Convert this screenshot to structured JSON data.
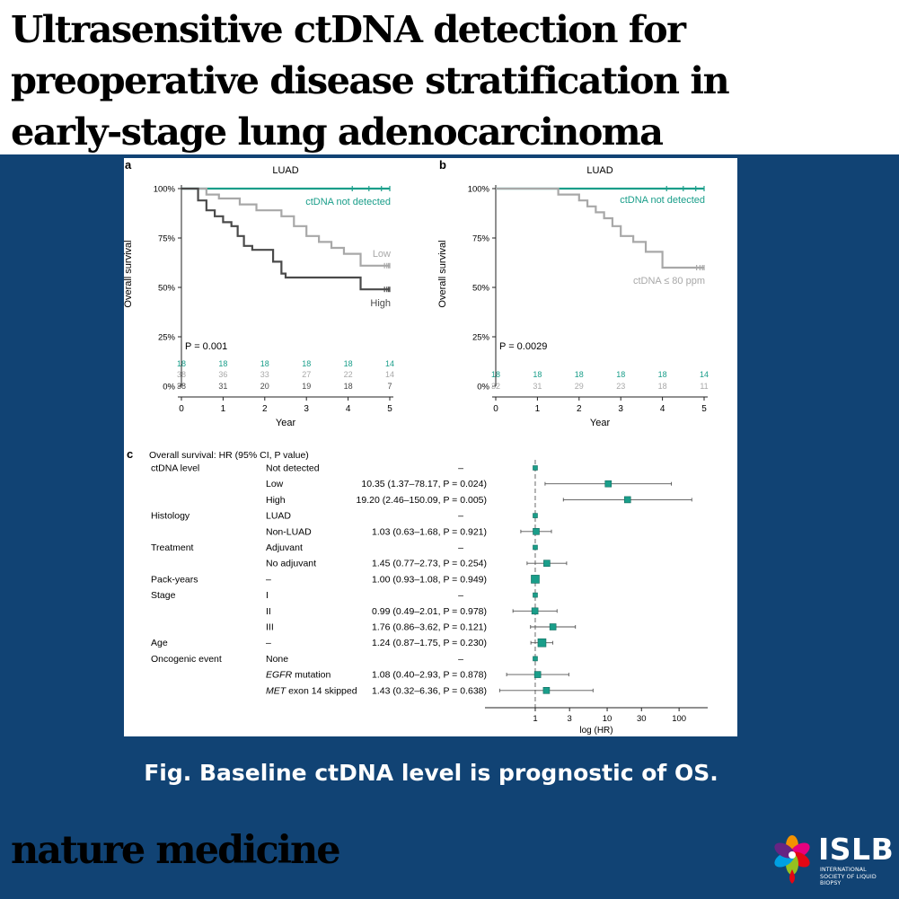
{
  "header": {
    "title_lines": [
      "Ultrasensitive ctDNA detection for",
      "preoperative disease stratification in",
      "early-stage lung adenocarcinoma"
    ]
  },
  "caption": "Fig.  Baseline ctDNA level is prognostic of OS.",
  "journal_brand": "nature medicine",
  "logo": {
    "word": "ISLB",
    "subtitle": "INTERNATIONAL SOCIETY OF LIQUID BIOPSY"
  },
  "colors": {
    "background": "#114374",
    "teal": "#1a9e8a",
    "low_gray": "#a8a8a8",
    "high_dark": "#4a4a4a"
  },
  "chart_data": [
    {
      "type": "line",
      "panel_label": "a",
      "title": "LUAD",
      "xlabel": "Year",
      "ylabel": "Overall survival",
      "xlim": [
        0,
        5
      ],
      "ylim": [
        0,
        100
      ],
      "x_ticks": [
        "0",
        "1",
        "2",
        "3",
        "4",
        "5"
      ],
      "y_ticks": [
        "0%",
        "25%",
        "50%",
        "75%",
        "100%"
      ],
      "pvalue": "P = 0.001",
      "series": [
        {
          "name": "ctDNA not detected",
          "color": "#1a9e8a",
          "x": [
            0,
            5
          ],
          "y": [
            100,
            100
          ],
          "at_risk": [
            "18",
            "18",
            "18",
            "18",
            "18",
            "14"
          ]
        },
        {
          "name": "Low",
          "color": "#a8a8a8",
          "x": [
            0,
            0.6,
            0.9,
            1.4,
            1.8,
            2.4,
            2.7,
            3.0,
            3.3,
            3.6,
            3.9,
            4.3,
            5
          ],
          "y": [
            100,
            97,
            95,
            92,
            89,
            86,
            81,
            76,
            73,
            70,
            67,
            61,
            61
          ],
          "at_risk": [
            "38",
            "36",
            "33",
            "27",
            "22",
            "14"
          ]
        },
        {
          "name": "High",
          "color": "#4a4a4a",
          "x": [
            0,
            0.4,
            0.6,
            0.8,
            1.0,
            1.2,
            1.35,
            1.5,
            1.7,
            2.2,
            2.4,
            2.5,
            4.3,
            5
          ],
          "y": [
            100,
            94,
            89,
            86,
            83,
            81,
            76,
            71,
            69,
            63,
            57,
            55,
            49,
            49
          ],
          "at_risk": [
            "38",
            "31",
            "20",
            "19",
            "18",
            "7"
          ]
        }
      ]
    },
    {
      "type": "line",
      "panel_label": "b",
      "title": "LUAD",
      "xlabel": "Year",
      "ylabel": "Overall survival",
      "xlim": [
        0,
        5
      ],
      "ylim": [
        0,
        100
      ],
      "x_ticks": [
        "0",
        "1",
        "2",
        "3",
        "4",
        "5"
      ],
      "y_ticks": [
        "0%",
        "25%",
        "50%",
        "75%",
        "100%"
      ],
      "pvalue": "P = 0.0029",
      "series": [
        {
          "name": "ctDNA not detected",
          "color": "#1a9e8a",
          "x": [
            0,
            5
          ],
          "y": [
            100,
            100
          ],
          "at_risk": [
            "18",
            "18",
            "18",
            "18",
            "18",
            "14"
          ]
        },
        {
          "name": "ctDNA ≤ 80 ppm",
          "color": "#a8a8a8",
          "x": [
            0,
            1.5,
            2.0,
            2.2,
            2.4,
            2.6,
            2.8,
            3.0,
            3.3,
            3.6,
            4.0,
            5
          ],
          "y": [
            100,
            97,
            94,
            91,
            88,
            85,
            81,
            76,
            73,
            68,
            60,
            60
          ],
          "at_risk": [
            "32",
            "31",
            "29",
            "23",
            "18",
            "11"
          ]
        }
      ]
    },
    {
      "type": "scatter",
      "subtype": "forest",
      "panel_label": "c",
      "title": "Overall survival: HR (95% CI, P value)",
      "xlabel": "log (HR)",
      "x_scale": "log",
      "x_ticks": [
        "1",
        "3",
        "10",
        "30",
        "100"
      ],
      "rows": [
        {
          "variable": "ctDNA level",
          "level": "Not detected",
          "hr_text": "–",
          "hr": 1,
          "lo": null,
          "hi": null,
          "ref": true
        },
        {
          "variable": "",
          "level": "Low",
          "hr_text": "10.35 (1.37–78.17, P = 0.024)",
          "hr": 10.35,
          "lo": 1.37,
          "hi": 78.17
        },
        {
          "variable": "",
          "level": "High",
          "hr_text": "19.20 (2.46–150.09, P = 0.005)",
          "hr": 19.2,
          "lo": 2.46,
          "hi": 150.09
        },
        {
          "variable": "Histology",
          "level": "LUAD",
          "hr_text": "–",
          "hr": 1,
          "lo": null,
          "hi": null,
          "ref": true
        },
        {
          "variable": "",
          "level": "Non-LUAD",
          "hr_text": "1.03 (0.63–1.68, P = 0.921)",
          "hr": 1.03,
          "lo": 0.63,
          "hi": 1.68
        },
        {
          "variable": "Treatment",
          "level": "Adjuvant",
          "hr_text": "–",
          "hr": 1,
          "lo": null,
          "hi": null,
          "ref": true
        },
        {
          "variable": "",
          "level": "No adjuvant",
          "hr_text": "1.45 (0.77–2.73, P = 0.254)",
          "hr": 1.45,
          "lo": 0.77,
          "hi": 2.73
        },
        {
          "variable": "Pack-years",
          "level": "–",
          "hr_text": "1.00 (0.93–1.08, P = 0.949)",
          "hr": 1.0,
          "lo": 0.93,
          "hi": 1.08
        },
        {
          "variable": "Stage",
          "level": "I",
          "hr_text": "–",
          "hr": 1,
          "lo": null,
          "hi": null,
          "ref": true
        },
        {
          "variable": "",
          "level": "II",
          "hr_text": "0.99 (0.49–2.01, P = 0.978)",
          "hr": 0.99,
          "lo": 0.49,
          "hi": 2.01
        },
        {
          "variable": "",
          "level": "III",
          "hr_text": "1.76 (0.86–3.62, P = 0.121)",
          "hr": 1.76,
          "lo": 0.86,
          "hi": 3.62
        },
        {
          "variable": "Age",
          "level": "–",
          "hr_text": "1.24 (0.87–1.75, P = 0.230)",
          "hr": 1.24,
          "lo": 0.87,
          "hi": 1.75
        },
        {
          "variable": "Oncogenic event",
          "level": "None",
          "hr_text": "–",
          "hr": 1,
          "lo": null,
          "hi": null,
          "ref": true
        },
        {
          "variable": "",
          "level": "EGFR mutation",
          "hr_text": "1.08 (0.40–2.93, P = 0.878)",
          "hr": 1.08,
          "lo": 0.4,
          "hi": 2.93
        },
        {
          "variable": "",
          "level": "MET exon 14 skipped",
          "hr_text": "1.43 (0.32–6.36, P = 0.638)",
          "hr": 1.43,
          "lo": 0.32,
          "hi": 6.36
        }
      ]
    }
  ]
}
